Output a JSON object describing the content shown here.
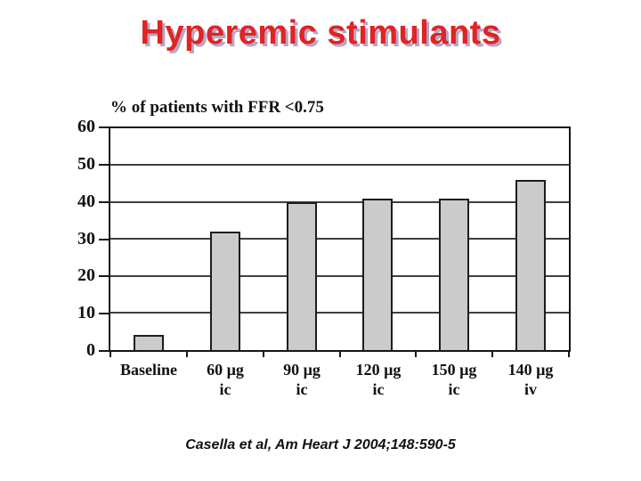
{
  "slide": {
    "title": "Hyperemic stimulants",
    "citation": "Casella et al, Am Heart J 2004;148:590-5"
  },
  "colors": {
    "title_red": "#e02323",
    "title_shadow": "#b6a7c7",
    "bar_fill": "#cbcbcb",
    "bar_border": "#1d1d1d",
    "axis": "#161616",
    "gridline": "#3f3f3f",
    "text": "#111111",
    "background": "#ffffff"
  },
  "chart_data": {
    "type": "bar",
    "title": "% of patients with FFR <0.75",
    "categories": [
      {
        "line1": "Baseline",
        "line2": ""
      },
      {
        "line1": "60 µg",
        "line2": "ic"
      },
      {
        "line1": "90 µg",
        "line2": "ic"
      },
      {
        "line1": "120 µg",
        "line2": "ic"
      },
      {
        "line1": "150 µg",
        "line2": "ic"
      },
      {
        "line1": "140 µg",
        "line2": "iv"
      }
    ],
    "values": [
      4,
      32,
      40,
      41,
      41,
      46
    ],
    "ylim": [
      0,
      60
    ],
    "yticks": [
      0,
      10,
      20,
      30,
      40,
      50,
      60
    ],
    "xlabel": "",
    "ylabel": "",
    "grid": "horizontal",
    "legend": "none",
    "bar_color": "#cbcbcb",
    "bar_border_color": "#1d1d1d"
  }
}
